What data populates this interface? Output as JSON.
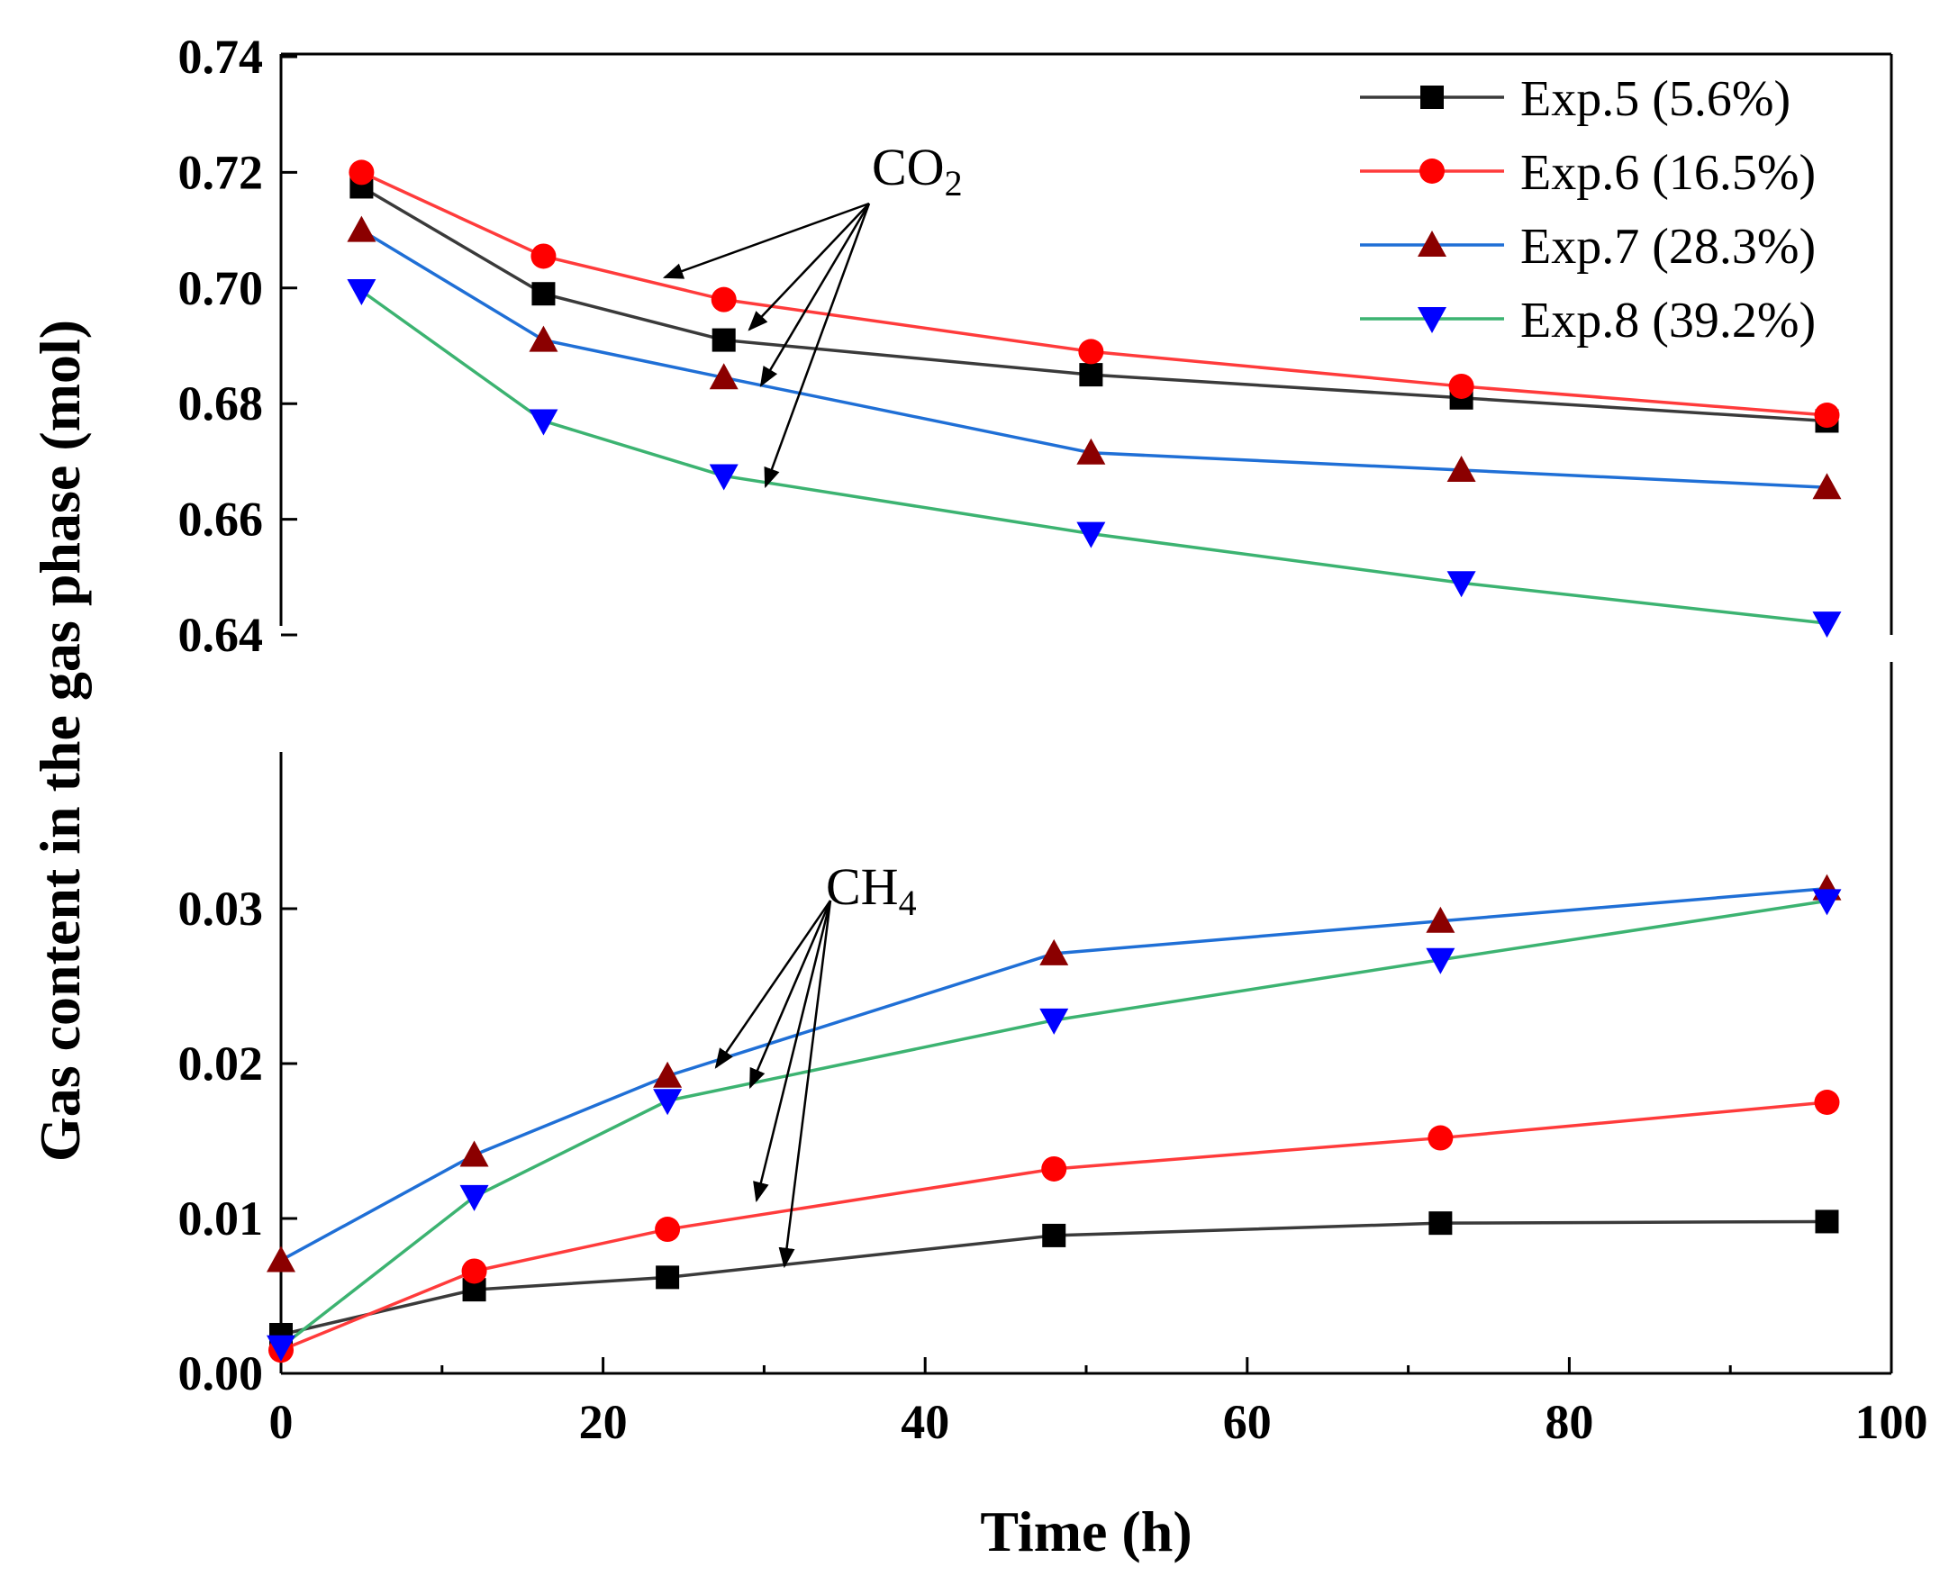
{
  "chart_data": {
    "type": "line",
    "xlabel": "Time (h)",
    "ylabel": "Gas content in the gas phase (mol)",
    "xlim": [
      0,
      100
    ],
    "x_ticks": [
      "0",
      "20",
      "40",
      "60",
      "80",
      "100"
    ],
    "y_axis_break": true,
    "upper_panel": {
      "ylim": [
        0.64,
        0.74
      ],
      "y_ticks": [
        "0.64",
        "0.66",
        "0.68",
        "0.70",
        "0.72",
        "0.74"
      ]
    },
    "lower_panel": {
      "ylim": [
        0.0,
        0.038
      ],
      "y_ticks": [
        "0.00",
        "0.01",
        "0.02",
        "0.03"
      ]
    },
    "legend_position": "top-right",
    "series": [
      {
        "name": "Exp.5 (5.6%)",
        "color": "#3a3a3a",
        "marker": "square",
        "marker_color": "#000000",
        "co2": {
          "x": [
            5,
            16.3,
            27.5,
            50.3,
            73.3,
            96
          ],
          "y": [
            0.7175,
            0.699,
            0.691,
            0.685,
            0.681,
            0.677
          ]
        },
        "ch4": {
          "x": [
            0,
            12,
            24,
            48,
            72,
            96
          ],
          "y": [
            0.0025,
            0.0054,
            0.0062,
            0.0089,
            0.0097,
            0.0098
          ]
        }
      },
      {
        "name": "Exp.6 (16.5%)",
        "color": "#ff3b3b",
        "marker": "circle",
        "marker_color": "#ff0000",
        "co2": {
          "x": [
            5,
            16.3,
            27.5,
            50.3,
            73.3,
            96
          ],
          "y": [
            0.72,
            0.7055,
            0.698,
            0.689,
            0.683,
            0.678
          ]
        },
        "ch4": {
          "x": [
            0,
            12,
            24,
            48,
            72,
            96
          ],
          "y": [
            0.0015,
            0.0066,
            0.0093,
            0.0132,
            0.0152,
            0.0175
          ]
        }
      },
      {
        "name": "Exp.7 (28.3%)",
        "color": "#1f6fd6",
        "marker": "triangle-up",
        "marker_color": "#8b0000",
        "co2": {
          "x": [
            5,
            16.3,
            27.5,
            50.3,
            73.3,
            96
          ],
          "y": [
            0.71,
            0.691,
            0.6845,
            0.6715,
            0.6685,
            0.6655
          ]
        },
        "ch4": {
          "x": [
            0,
            12,
            24,
            48,
            72,
            96
          ],
          "y": [
            0.0073,
            0.0141,
            0.0192,
            0.0271,
            0.0292,
            0.0313
          ]
        }
      },
      {
        "name": "Exp.8 (39.2%)",
        "color": "#3cb371",
        "marker": "triangle-down",
        "marker_color": "#0000ff",
        "co2": {
          "x": [
            5,
            16.3,
            27.5,
            50.3,
            73.3,
            96
          ],
          "y": [
            0.6995,
            0.677,
            0.6675,
            0.6575,
            0.649,
            0.642
          ]
        },
        "ch4": {
          "x": [
            0,
            12,
            24,
            48,
            72,
            96
          ],
          "y": [
            0.0017,
            0.0114,
            0.0176,
            0.0228,
            0.0267,
            0.0305
          ]
        }
      }
    ],
    "annotations": [
      {
        "label": "CO",
        "subscript": "2"
      },
      {
        "label": "CH",
        "subscript": "4"
      }
    ]
  }
}
